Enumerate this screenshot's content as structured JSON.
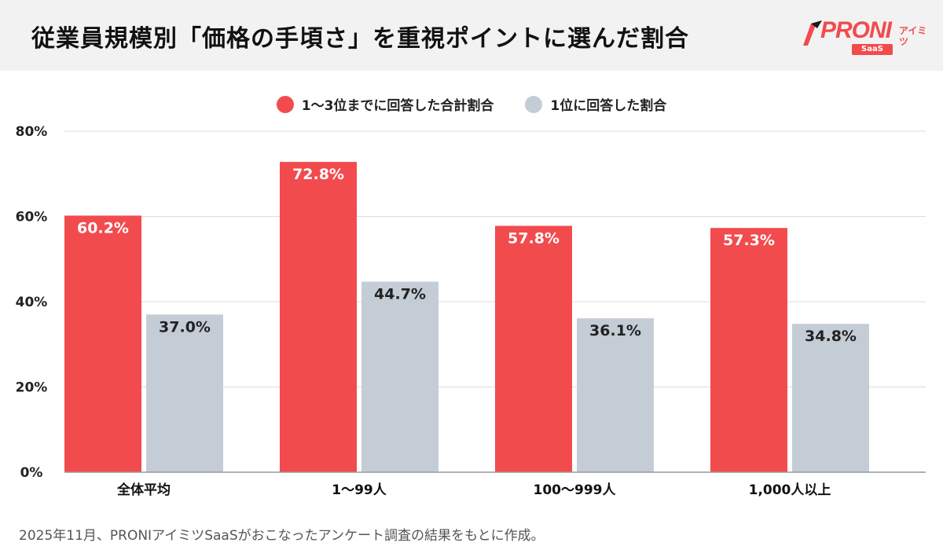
{
  "header": {
    "title": "従業員規模別「価格の手頃さ」を重視ポイントに選んだ割合",
    "logo": {
      "text": "PRONI",
      "sub": "アイミツ",
      "badge": "SaaS",
      "icon": "pen-flag-icon"
    }
  },
  "colors": {
    "primary": "#f24b4e",
    "secondary": "#c4ccd6",
    "grid": "#dcdcdc",
    "axis": "#999999",
    "header_bg": "#f2f2f2"
  },
  "chart_data": {
    "type": "bar",
    "categories": [
      "全体平均",
      "1〜99人",
      "100〜999人",
      "1,000人以上"
    ],
    "series": [
      {
        "name": "1〜3位までに回答した合計割合",
        "values": [
          60.2,
          72.8,
          57.8,
          57.3
        ],
        "labels": [
          "60.2%",
          "72.8%",
          "57.8%",
          "57.3%"
        ]
      },
      {
        "name": "1位に回答した割合",
        "values": [
          37.0,
          44.7,
          36.1,
          34.8
        ],
        "labels": [
          "37.0%",
          "44.7%",
          "36.1%",
          "34.8%"
        ]
      }
    ],
    "yticks": [
      0,
      20,
      40,
      60,
      80
    ],
    "ytick_labels": [
      "0%",
      "20%",
      "40%",
      "60%",
      "80%"
    ],
    "ylim": [
      0,
      80
    ],
    "grid": true,
    "legend_position": "top-center"
  },
  "footnote": "2025年11月、PRONIアイミツSaaSがおこなったアンケート調査の結果をもとに作成。"
}
